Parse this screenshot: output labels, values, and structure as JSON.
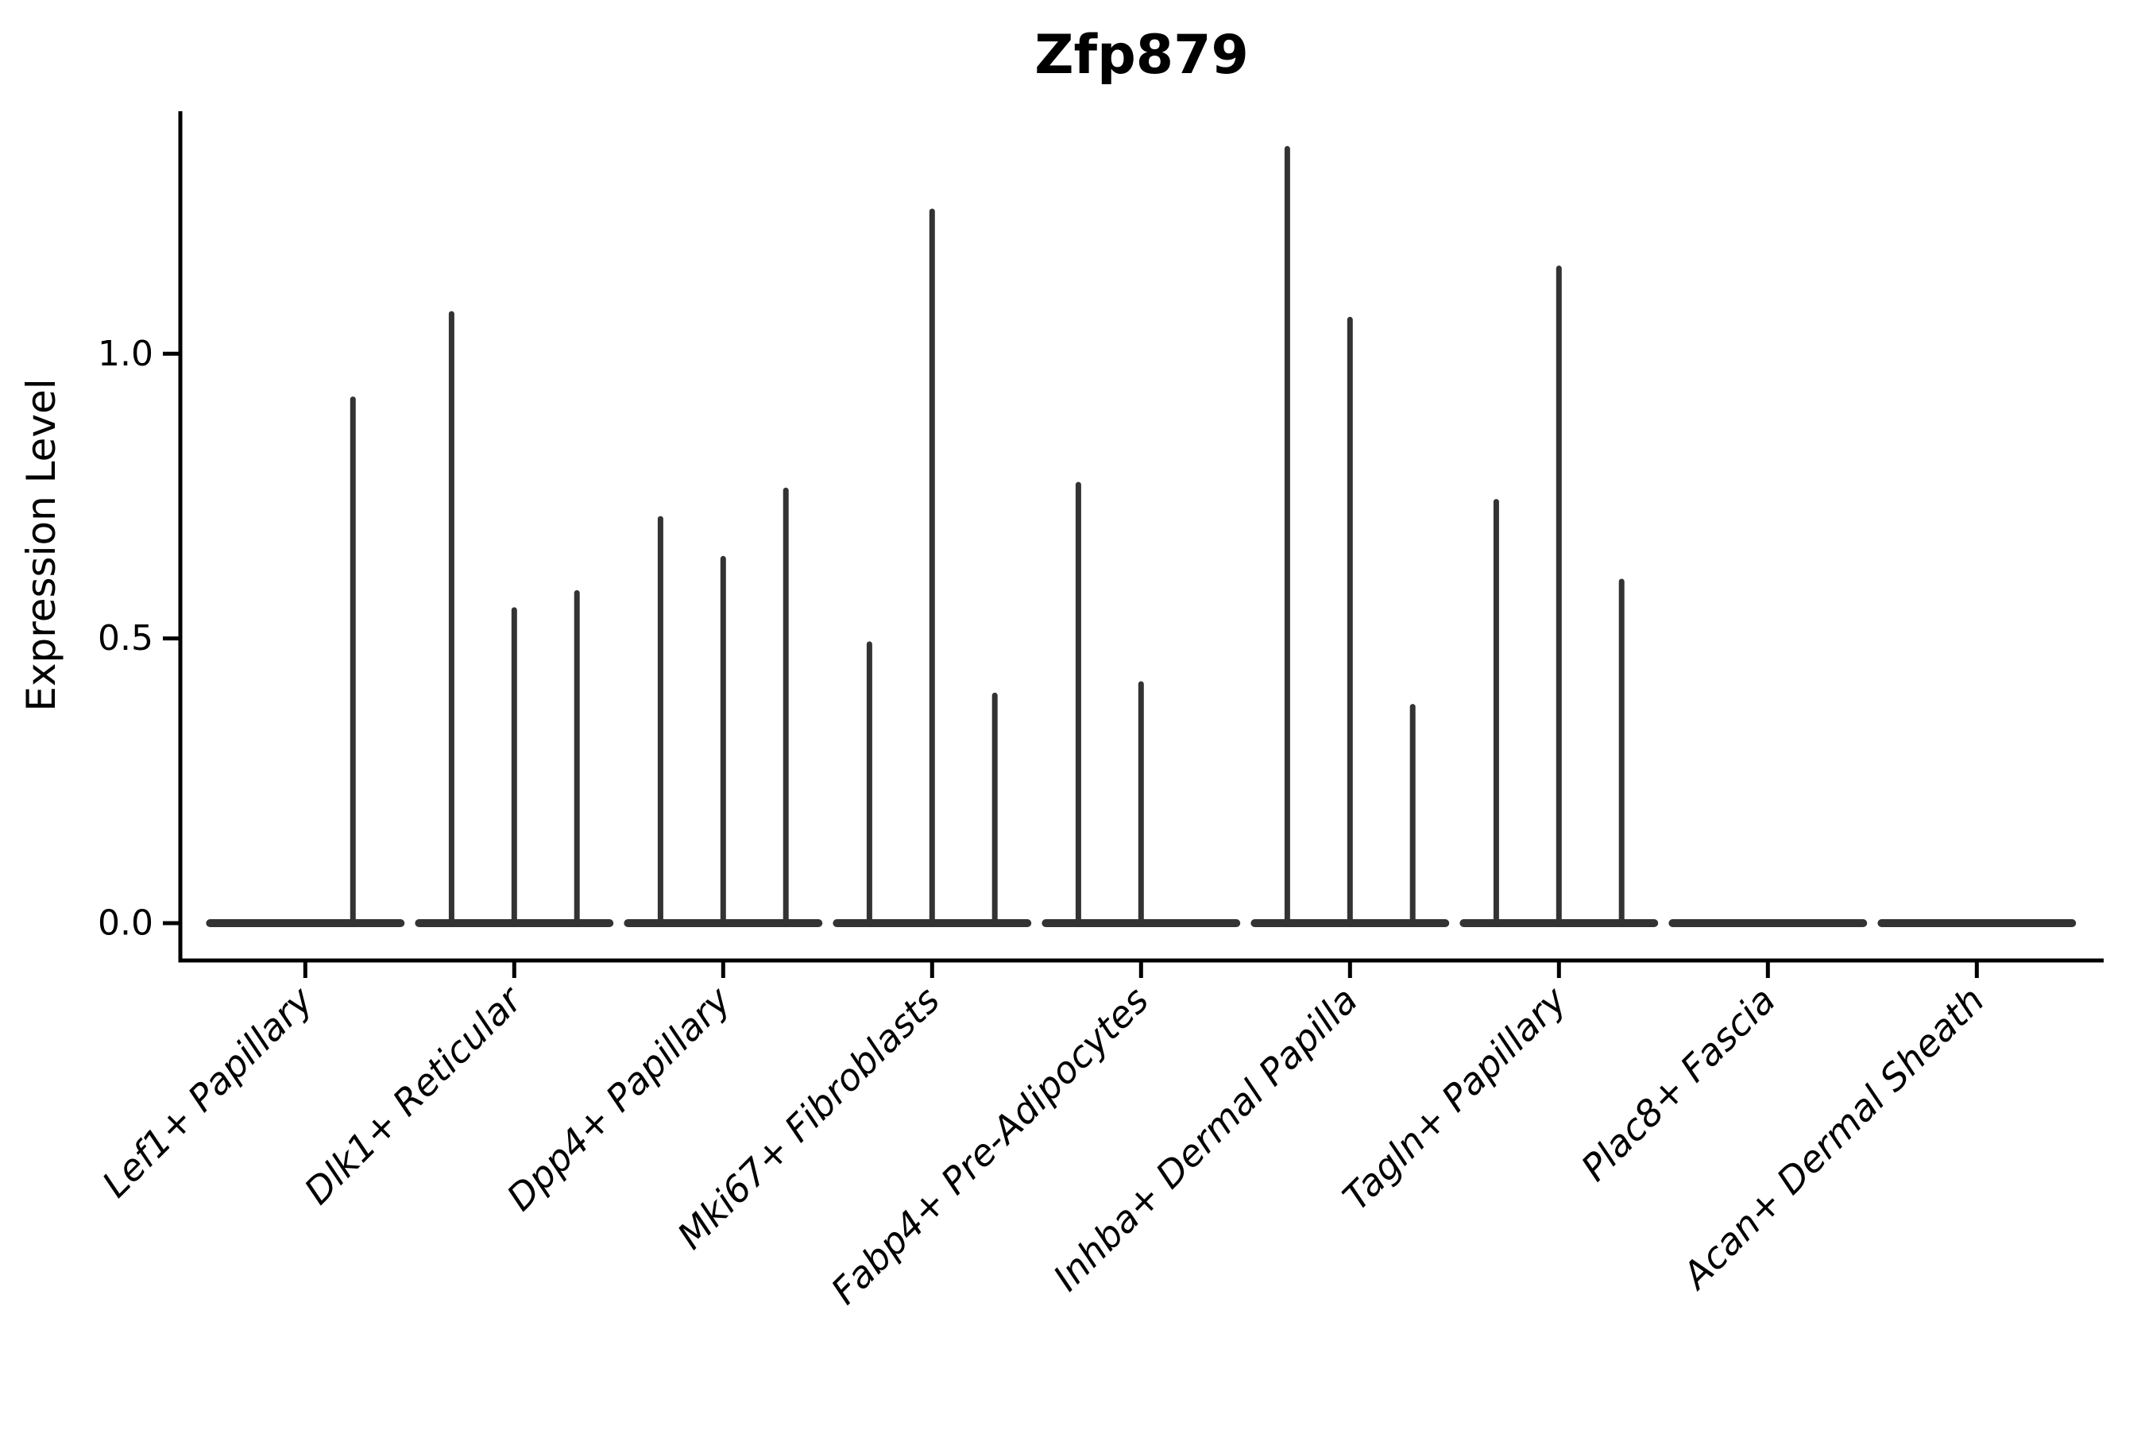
{
  "chart_data": {
    "type": "violin",
    "title": "Zfp879",
    "ylabel": "Expression Level",
    "xlabel": "",
    "yticks": [
      0.0,
      0.5,
      1.0
    ],
    "ylim": [
      -0.066,
      1.427
    ],
    "grid": false,
    "legend": "none",
    "categories": [
      "Lef1+ Papillary",
      "Dlk1+ Reticular",
      "Dpp4+ Papillary",
      "Mki67+ Fibroblasts",
      "Fabp4+ Pre-Adipocytes",
      "Inhba+ Dermal Papilla",
      "Tagln+ Papillary",
      "Plac8+ Fascia",
      "Acan+ Dermal Sheath"
    ],
    "series": [
      {
        "category": "Lef1+ Papillary",
        "spikes": [
          {
            "pos": 0.228,
            "max": 0.92
          }
        ]
      },
      {
        "category": "Dlk1+ Reticular",
        "spikes": [
          {
            "pos": -0.3,
            "max": 1.07
          },
          {
            "pos": 0.0,
            "max": 0.55
          },
          {
            "pos": 0.3,
            "max": 0.58
          }
        ]
      },
      {
        "category": "Dpp4+ Papillary",
        "spikes": [
          {
            "pos": -0.3,
            "max": 0.71
          },
          {
            "pos": 0.0,
            "max": 0.64
          },
          {
            "pos": 0.3,
            "max": 0.76
          }
        ]
      },
      {
        "category": "Mki67+ Fibroblasts",
        "spikes": [
          {
            "pos": -0.3,
            "max": 0.49
          },
          {
            "pos": 0.0,
            "max": 1.25
          },
          {
            "pos": 0.3,
            "max": 0.4
          }
        ]
      },
      {
        "category": "Fabp4+ Pre-Adipocytes",
        "spikes": [
          {
            "pos": -0.3,
            "max": 0.77
          },
          {
            "pos": 0.0,
            "max": 0.42
          }
        ]
      },
      {
        "category": "Inhba+ Dermal Papilla",
        "spikes": [
          {
            "pos": -0.3,
            "max": 1.36
          },
          {
            "pos": 0.0,
            "max": 1.06
          },
          {
            "pos": 0.3,
            "max": 0.38
          }
        ]
      },
      {
        "category": "Tagln+ Papillary",
        "spikes": [
          {
            "pos": -0.3,
            "max": 0.74
          },
          {
            "pos": 0.0,
            "max": 1.15
          },
          {
            "pos": 0.3,
            "max": 0.6
          }
        ]
      },
      {
        "category": "Plac8+ Fascia",
        "spikes": []
      },
      {
        "category": "Acan+ Dermal Sheath",
        "spikes": []
      }
    ],
    "baseline_halfwidth": 0.456,
    "colors": {
      "violin_line": "#333333",
      "spine": "#000000",
      "text": "#000000",
      "background": "#ffffff"
    }
  }
}
